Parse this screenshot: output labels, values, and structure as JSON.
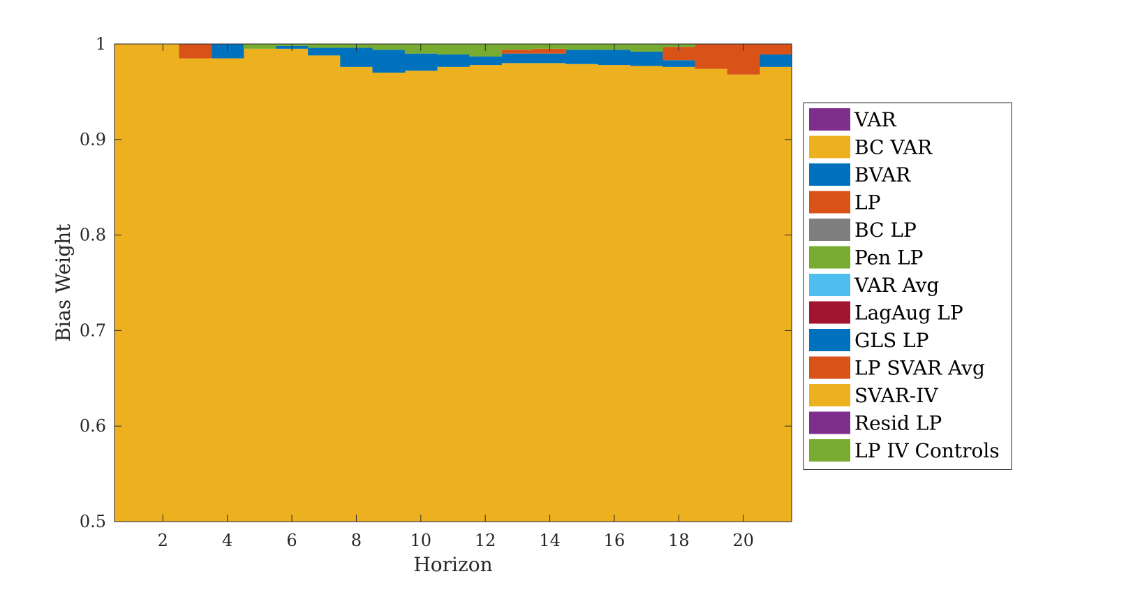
{
  "chart_data": {
    "type": "area",
    "subtype": "stacked-step",
    "xlabel": "Horizon",
    "ylabel": "Bias Weight",
    "xlim": [
      1,
      21
    ],
    "ylim": [
      0.5,
      1
    ],
    "xticks": [
      "2",
      "4",
      "6",
      "8",
      "10",
      "12",
      "14",
      "16",
      "18",
      "20"
    ],
    "yticks": [
      "0.5",
      "0.6",
      "0.7",
      "0.8",
      "0.9",
      "1"
    ],
    "grid": false,
    "legend_position": "outside-right",
    "x": [
      1,
      2,
      3,
      4,
      5,
      6,
      7,
      8,
      9,
      10,
      11,
      12,
      13,
      14,
      15,
      16,
      17,
      18,
      19,
      20,
      21
    ],
    "series": [
      {
        "name": "VAR",
        "color": "#7E2F8E",
        "values": [
          0,
          0.005,
          0.005,
          0,
          0,
          0,
          0,
          0,
          0,
          0,
          0,
          0,
          0,
          0,
          0,
          0,
          0,
          0,
          0,
          0,
          0
        ]
      },
      {
        "name": "BC VAR",
        "color": "#EDB120",
        "values": [
          1,
          0.995,
          0.98,
          0.985,
          0.995,
          0.995,
          0.988,
          0.976,
          0.97,
          0.972,
          0.976,
          0.978,
          0.98,
          0.98,
          0.979,
          0.978,
          0.977,
          0.976,
          0.974,
          0.968,
          0.976
        ]
      },
      {
        "name": "BVAR",
        "color": "#0072BD",
        "values": [
          0,
          0,
          0,
          0.015,
          0,
          0.003,
          0.008,
          0.02,
          0.024,
          0.018,
          0.013,
          0.009,
          0.01,
          0.01,
          0.015,
          0.016,
          0.015,
          0.007,
          0,
          0,
          0.013
        ]
      },
      {
        "name": "LP",
        "color": "#D95319",
        "values": [
          0,
          0,
          0.015,
          0,
          0,
          0,
          0,
          0,
          0,
          0,
          0,
          0,
          0.004,
          0.005,
          0,
          0,
          0,
          0.014,
          0.026,
          0.032,
          0.011
        ]
      },
      {
        "name": "BC LP",
        "color": "#7F7F7F",
        "values": [
          0,
          0,
          0,
          0,
          0,
          0,
          0,
          0,
          0,
          0,
          0,
          0,
          0,
          0,
          0,
          0,
          0,
          0,
          0,
          0,
          0
        ]
      },
      {
        "name": "Pen LP",
        "color": "#77AC30",
        "values": [
          0,
          0,
          0,
          0,
          0.005,
          0.002,
          0.004,
          0.004,
          0.006,
          0.01,
          0.011,
          0.013,
          0.006,
          0.005,
          0.006,
          0.006,
          0.008,
          0.003,
          0,
          0,
          0
        ]
      },
      {
        "name": "VAR Avg",
        "color": "#4DBEEE",
        "values": [
          0,
          0,
          0,
          0,
          0,
          0,
          0,
          0,
          0,
          0,
          0,
          0,
          0,
          0,
          0,
          0,
          0,
          0,
          0,
          0,
          0
        ]
      },
      {
        "name": "LagAug LP",
        "color": "#A2142F",
        "values": [
          0,
          0,
          0,
          0,
          0,
          0,
          0,
          0,
          0,
          0,
          0,
          0,
          0,
          0,
          0,
          0,
          0,
          0,
          0,
          0,
          0
        ]
      },
      {
        "name": "GLS LP",
        "color": "#0072BD",
        "values": [
          0,
          0,
          0,
          0,
          0,
          0,
          0,
          0,
          0,
          0,
          0,
          0,
          0,
          0,
          0,
          0,
          0,
          0,
          0,
          0,
          0
        ]
      },
      {
        "name": "LP SVAR Avg",
        "color": "#D95319",
        "values": [
          0,
          0,
          0,
          0,
          0,
          0,
          0,
          0,
          0,
          0,
          0,
          0,
          0,
          0,
          0,
          0,
          0,
          0,
          0,
          0,
          0
        ]
      },
      {
        "name": "SVAR-IV",
        "color": "#EDB120",
        "values": [
          0,
          0,
          0,
          0,
          0,
          0,
          0,
          0,
          0,
          0,
          0,
          0,
          0,
          0,
          0,
          0,
          0,
          0,
          0,
          0,
          0
        ]
      },
      {
        "name": "Resid LP",
        "color": "#7E2F8E",
        "values": [
          0,
          0,
          0,
          0,
          0,
          0,
          0,
          0,
          0,
          0,
          0,
          0,
          0,
          0,
          0,
          0,
          0,
          0,
          0,
          0,
          0
        ]
      },
      {
        "name": "LP IV Controls",
        "color": "#77AC30",
        "values": [
          0,
          0,
          0,
          0,
          0,
          0,
          0,
          0,
          0,
          0,
          0,
          0,
          0,
          0,
          0,
          0,
          0,
          0,
          0,
          0,
          0
        ]
      }
    ]
  }
}
